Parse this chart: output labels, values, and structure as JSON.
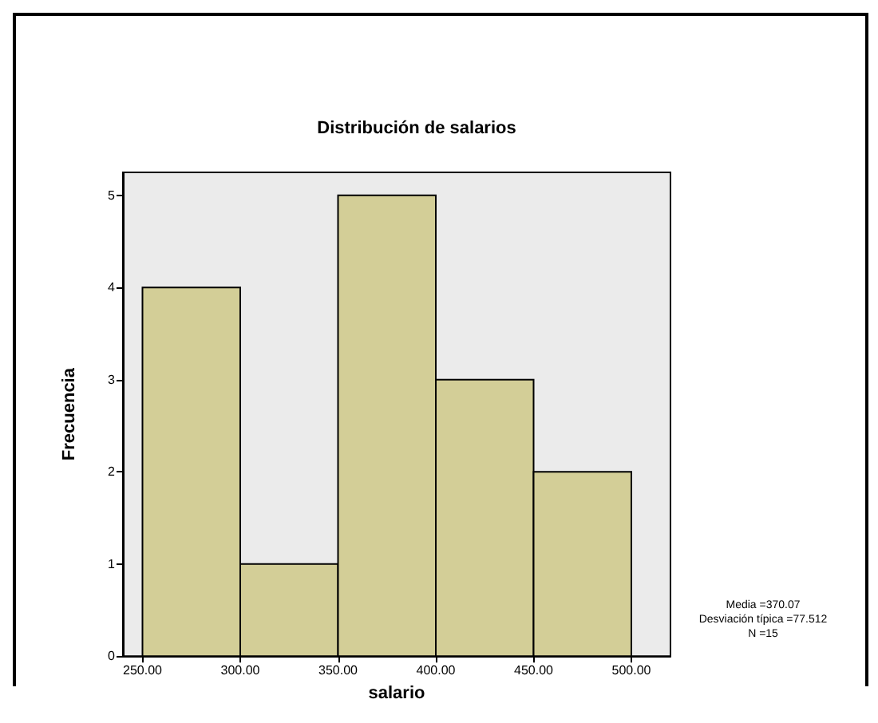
{
  "chart_data": {
    "type": "histogram",
    "title": "Distribución de salarios",
    "xlabel": "salario",
    "ylabel": "Frecuencia",
    "bins": [
      250,
      300,
      350,
      400,
      450,
      500
    ],
    "values": [
      4,
      1,
      5,
      3,
      2
    ],
    "color": "#d3ce97",
    "xlim": [
      240,
      520
    ],
    "xticks": [
      {
        "value": 250,
        "label": "250.00"
      },
      {
        "value": 300,
        "label": "300.00"
      },
      {
        "value": 350,
        "label": "350.00"
      },
      {
        "value": 400,
        "label": "400.00"
      },
      {
        "value": 450,
        "label": "450.00"
      },
      {
        "value": 500,
        "label": "500.00"
      }
    ],
    "ylim": [
      0,
      5.25
    ],
    "yticks": [
      0,
      1,
      2,
      3,
      4,
      5
    ],
    "grid": false,
    "annotations": [
      "Media =370.07",
      "Desviación típica =77.512",
      "N =15"
    ]
  }
}
